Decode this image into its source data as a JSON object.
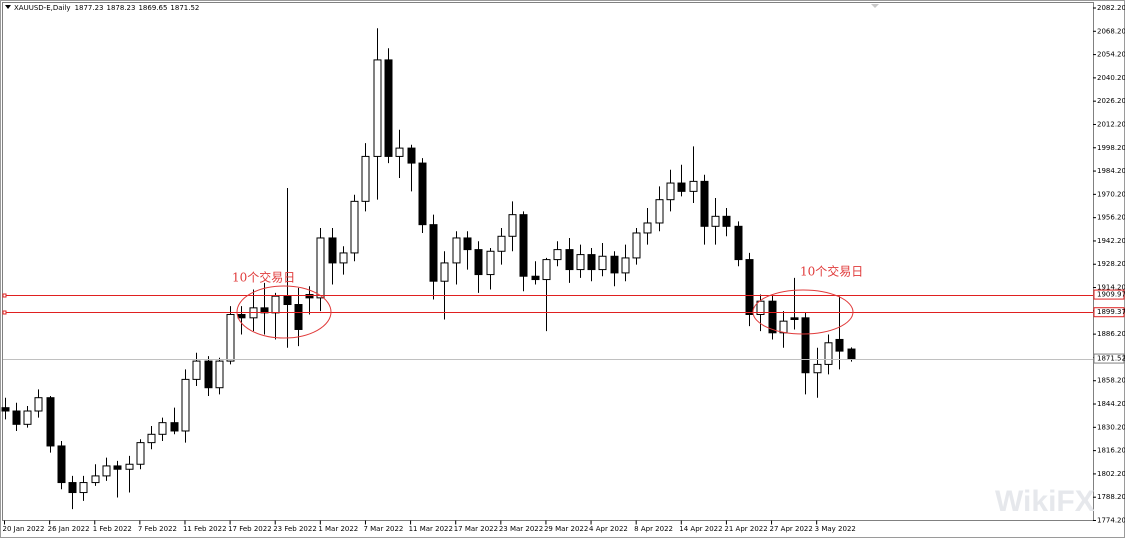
{
  "chart_data": {
    "type": "candlestick",
    "symbol": "XAUUSD-E,Daily",
    "watermark": "WikiFX",
    "categories": [
      "20 Jan 2022",
      null,
      null,
      null,
      "26 Jan 2022",
      null,
      null,
      null,
      "1 Feb 2022",
      null,
      null,
      null,
      "7 Feb 2022",
      null,
      null,
      null,
      "11 Feb 2022",
      null,
      null,
      null,
      "17 Feb 2022",
      null,
      null,
      null,
      "23 Feb 2022",
      null,
      null,
      null,
      "1 Mar 2022",
      null,
      null,
      null,
      "7 Mar 2022",
      null,
      null,
      null,
      "11 Mar 2022",
      null,
      null,
      null,
      "17 Mar 2022",
      null,
      null,
      null,
      "23 Mar 2022",
      null,
      null,
      null,
      "29 Mar 2022",
      null,
      null,
      null,
      "4 Apr 2022",
      null,
      null,
      null,
      "8 Apr 2022",
      null,
      null,
      null,
      "14 Apr 2022",
      null,
      null,
      null,
      "21 Apr 2022",
      null,
      null,
      null,
      "27 Apr 2022",
      null,
      null,
      null,
      "3 May 2022",
      null,
      null,
      null
    ],
    "open": [
      1842,
      1840,
      1832,
      1840,
      1848,
      1819,
      1797,
      1791,
      1797,
      1801,
      1807,
      1805,
      1808,
      1821,
      1826,
      1833,
      1828,
      1859,
      1870,
      1854,
      1870,
      1898,
      1896,
      1902,
      1899,
      1909,
      1904,
      1910,
      1908,
      1944,
      1929,
      1935,
      1966,
      1993,
      2051,
      1993,
      1998,
      1989,
      1952,
      1918,
      1929,
      1944,
      1937,
      1922,
      1936,
      1945,
      1958,
      1921,
      1919,
      1931,
      1937,
      1925,
      1934,
      1925,
      1933,
      1923,
      1932,
      1947,
      1953,
      1967,
      1977,
      1972,
      1978,
      1951,
      1957,
      1951,
      1931,
      1898,
      1906,
      1887,
      1896,
      1896,
      1863,
      1868,
      1883,
      1877.23
    ],
    "high": [
      1848,
      1845,
      1843,
      1853,
      1849,
      1822,
      1801,
      1801,
      1808,
      1812,
      1810,
      1813,
      1823,
      1831,
      1836,
      1842,
      1865,
      1875,
      1873,
      1872,
      1903,
      1903,
      1913,
      1917,
      1911,
      1974,
      1914,
      1915,
      1950,
      1950,
      1939,
      1970,
      2001,
      2070,
      2058,
      2009,
      2000,
      1992,
      1958,
      1936,
      1948,
      1948,
      1942,
      1938,
      1950,
      1966,
      1960,
      1930,
      1932,
      1942,
      1944,
      1940,
      1938,
      1941,
      1936,
      1940,
      1950,
      1962,
      1975,
      1985,
      1988,
      1999,
      1982,
      1968,
      1962,
      1954,
      1935,
      1910,
      1910,
      1900,
      1920,
      1899,
      1878,
      1886,
      1909,
      1878.23
    ],
    "low": [
      1835,
      1828,
      1830,
      1836,
      1815,
      1793,
      1781,
      1786,
      1795,
      1798,
      1788,
      1791,
      1805,
      1817,
      1822,
      1826,
      1821,
      1855,
      1849,
      1850,
      1868,
      1886,
      1888,
      1886,
      1883,
      1878,
      1879,
      1898,
      1900,
      1916,
      1922,
      1930,
      1960,
      1967,
      1989,
      1980,
      1972,
      1947,
      1907,
      1895,
      1916,
      1925,
      1911,
      1913,
      1928,
      1936,
      1912,
      1916,
      1888,
      1927,
      1917,
      1920,
      1918,
      1921,
      1915,
      1918,
      1928,
      1940,
      1948,
      1960,
      1969,
      1965,
      1940,
      1940,
      1945,
      1927,
      1891,
      1888,
      1883,
      1878,
      1889,
      1850,
      1848,
      1862,
      1865,
      1869.65
    ],
    "close": [
      1840,
      1832,
      1840,
      1848,
      1819,
      1797,
      1791,
      1797,
      1801,
      1807,
      1805,
      1808,
      1821,
      1826,
      1833,
      1828,
      1859,
      1870,
      1854,
      1870,
      1898,
      1896,
      1902,
      1899,
      1909,
      1904,
      1889,
      1908,
      1944,
      1929,
      1935,
      1966,
      1993,
      2051,
      1993,
      1998,
      1989,
      1952,
      1918,
      1929,
      1944,
      1937,
      1922,
      1936,
      1945,
      1958,
      1921,
      1919,
      1931,
      1937,
      1925,
      1934,
      1925,
      1933,
      1923,
      1932,
      1947,
      1953,
      1967,
      1977,
      1972,
      1978,
      1951,
      1957,
      1951,
      1931,
      1898,
      1906,
      1887,
      1894,
      1895,
      1863,
      1868,
      1881,
      1876,
      1871.52
    ],
    "up_color": "#ffffff",
    "down_color": "#000000",
    "hlines": [
      1909.97,
      1899.37
    ],
    "hline_color": "#e02020",
    "bid_line_color": "#c0c0c0",
    "ylim": [
      1774.2,
      2085.2
    ],
    "yticks": [
      {
        "value": 2082.2,
        "label": "2082.20"
      },
      {
        "value": 2068.2,
        "label": "2068.20"
      },
      {
        "value": 2054.2,
        "label": "2054.20"
      },
      {
        "value": 2040.2,
        "label": "2040.20"
      },
      {
        "value": 2026.2,
        "label": "2026.20"
      },
      {
        "value": 2012.2,
        "label": "2012.20"
      },
      {
        "value": 1998.2,
        "label": "1998.20"
      },
      {
        "value": 1984.2,
        "label": "1984.20"
      },
      {
        "value": 1970.2,
        "label": "1970.20"
      },
      {
        "value": 1956.2,
        "label": "1956.20"
      },
      {
        "value": 1942.2,
        "label": "1942.20"
      },
      {
        "value": 1928.2,
        "label": "1928.20"
      },
      {
        "value": 1914.2,
        "label": "1914.20"
      },
      {
        "value": 1900.2,
        "label": "1900.20"
      },
      {
        "value": 1886.2,
        "label": "1886.20"
      },
      {
        "value": 1872.2,
        "label": "1872.20"
      },
      {
        "value": 1858.2,
        "label": "1858.20"
      },
      {
        "value": 1844.2,
        "label": "1844.20"
      },
      {
        "value": 1830.2,
        "label": "1830.20"
      },
      {
        "value": 1816.2,
        "label": "1816.20"
      },
      {
        "value": 1802.2,
        "label": "1802.20"
      },
      {
        "value": 1788.2,
        "label": "1788.20"
      },
      {
        "value": 1774.2,
        "label": "1774.20"
      }
    ],
    "annotations": [
      {
        "text": "10个交易日"
      },
      {
        "text": "10个交易日"
      }
    ]
  }
}
